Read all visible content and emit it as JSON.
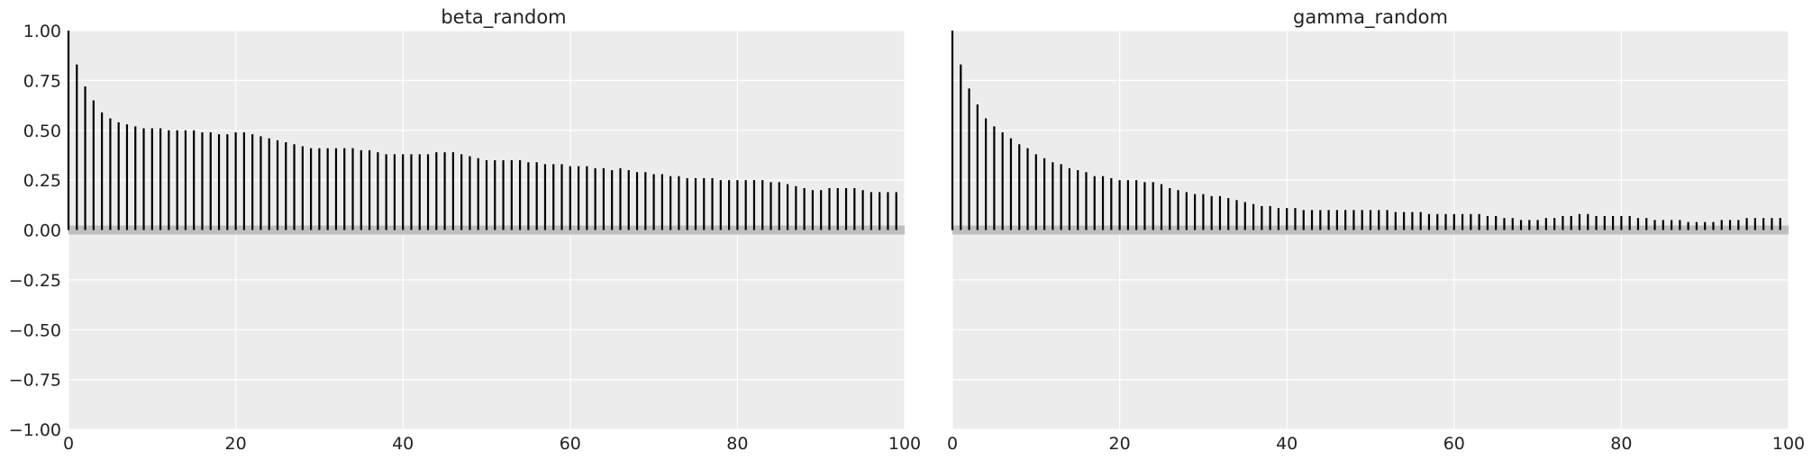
{
  "chart_data": [
    {
      "type": "bar",
      "subtype": "autocorrelation",
      "title": "beta_random",
      "xlabel": "",
      "ylabel": "",
      "xlim": [
        0,
        100
      ],
      "ylim": [
        -1.0,
        1.0
      ],
      "grid": true,
      "x_ticks": [
        "0",
        "20",
        "40",
        "60",
        "80",
        "100"
      ],
      "y_ticks": [
        "1.00",
        "0.75",
        "0.50",
        "0.25",
        "0.00",
        "−0.25",
        "−0.50",
        "−0.75",
        "−1.00"
      ],
      "lags_from": 0,
      "values": [
        1.0,
        0.83,
        0.72,
        0.65,
        0.59,
        0.56,
        0.54,
        0.53,
        0.52,
        0.51,
        0.51,
        0.51,
        0.5,
        0.5,
        0.5,
        0.5,
        0.49,
        0.49,
        0.48,
        0.48,
        0.49,
        0.49,
        0.48,
        0.47,
        0.46,
        0.45,
        0.44,
        0.43,
        0.42,
        0.41,
        0.41,
        0.41,
        0.41,
        0.41,
        0.41,
        0.4,
        0.4,
        0.39,
        0.38,
        0.38,
        0.38,
        0.38,
        0.38,
        0.38,
        0.39,
        0.39,
        0.39,
        0.38,
        0.37,
        0.36,
        0.35,
        0.35,
        0.35,
        0.35,
        0.35,
        0.34,
        0.34,
        0.33,
        0.33,
        0.33,
        0.32,
        0.32,
        0.32,
        0.31,
        0.31,
        0.3,
        0.31,
        0.3,
        0.29,
        0.29,
        0.28,
        0.28,
        0.27,
        0.27,
        0.26,
        0.26,
        0.26,
        0.26,
        0.25,
        0.25,
        0.25,
        0.25,
        0.25,
        0.25,
        0.24,
        0.24,
        0.23,
        0.22,
        0.21,
        0.2,
        0.2,
        0.21,
        0.21,
        0.21,
        0.21,
        0.2,
        0.19,
        0.19,
        0.19,
        0.19
      ]
    },
    {
      "type": "bar",
      "subtype": "autocorrelation",
      "title": "gamma_random",
      "xlabel": "",
      "ylabel": "",
      "xlim": [
        0,
        100
      ],
      "ylim": [
        -1.0,
        1.0
      ],
      "grid": true,
      "x_ticks": [
        "0",
        "20",
        "40",
        "60",
        "80",
        "100"
      ],
      "y_ticks": [],
      "lags_from": 0,
      "values": [
        1.0,
        0.83,
        0.71,
        0.63,
        0.56,
        0.52,
        0.49,
        0.46,
        0.43,
        0.41,
        0.38,
        0.36,
        0.34,
        0.33,
        0.31,
        0.3,
        0.29,
        0.27,
        0.27,
        0.26,
        0.25,
        0.25,
        0.25,
        0.24,
        0.24,
        0.23,
        0.21,
        0.2,
        0.19,
        0.18,
        0.18,
        0.17,
        0.17,
        0.16,
        0.15,
        0.14,
        0.13,
        0.12,
        0.12,
        0.11,
        0.11,
        0.11,
        0.1,
        0.1,
        0.1,
        0.1,
        0.1,
        0.1,
        0.1,
        0.1,
        0.1,
        0.1,
        0.1,
        0.09,
        0.09,
        0.09,
        0.09,
        0.08,
        0.08,
        0.08,
        0.08,
        0.08,
        0.08,
        0.08,
        0.07,
        0.07,
        0.06,
        0.06,
        0.05,
        0.05,
        0.05,
        0.06,
        0.06,
        0.07,
        0.07,
        0.08,
        0.08,
        0.07,
        0.07,
        0.07,
        0.07,
        0.07,
        0.06,
        0.06,
        0.05,
        0.05,
        0.05,
        0.05,
        0.04,
        0.04,
        0.04,
        0.04,
        0.05,
        0.05,
        0.05,
        0.06,
        0.06,
        0.06,
        0.06,
        0.06
      ]
    }
  ],
  "colors": {
    "panel_bg": "#ececec",
    "grid": "#ffffff",
    "bar": "#000000",
    "zero_band": "#bfbfbf",
    "text": "#222222",
    "axis_line": "#000000"
  }
}
